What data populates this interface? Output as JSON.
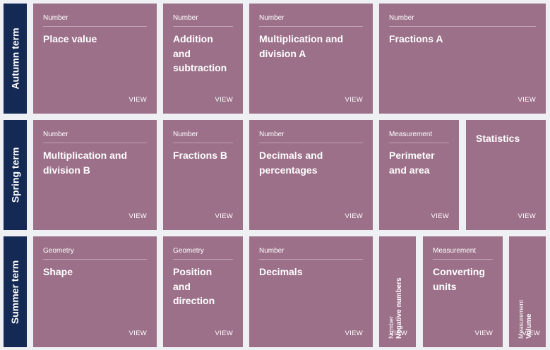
{
  "view_label": "VIEW",
  "terms": {
    "autumn": "Autumn term",
    "spring": "Spring term",
    "summer": "Summer term"
  },
  "autumn": [
    {
      "category": "Number",
      "title": "Place value"
    },
    {
      "category": "Number",
      "title": "Addition and subtraction"
    },
    {
      "category": "Number",
      "title": "Multiplication and division A"
    },
    {
      "category": "Number",
      "title": "Fractions A"
    }
  ],
  "spring": [
    {
      "category": "Number",
      "title": "Multiplication and division B"
    },
    {
      "category": "Number",
      "title": "Fractions B"
    },
    {
      "category": "Number",
      "title": "Decimals and percentages"
    },
    {
      "category": "Measurement",
      "title": "Perimeter and area"
    },
    {
      "category": "",
      "title": "Statistics"
    }
  ],
  "summer": [
    {
      "category": "Geometry",
      "title": "Shape"
    },
    {
      "category": "Geometry",
      "title": "Position and direction"
    },
    {
      "category": "Number",
      "title": "Decimals"
    },
    {
      "category": "Number",
      "title": "Negative numbers"
    },
    {
      "category": "Measurement",
      "title": "Converting units"
    },
    {
      "category": "Measurement",
      "title": "Volume"
    }
  ]
}
